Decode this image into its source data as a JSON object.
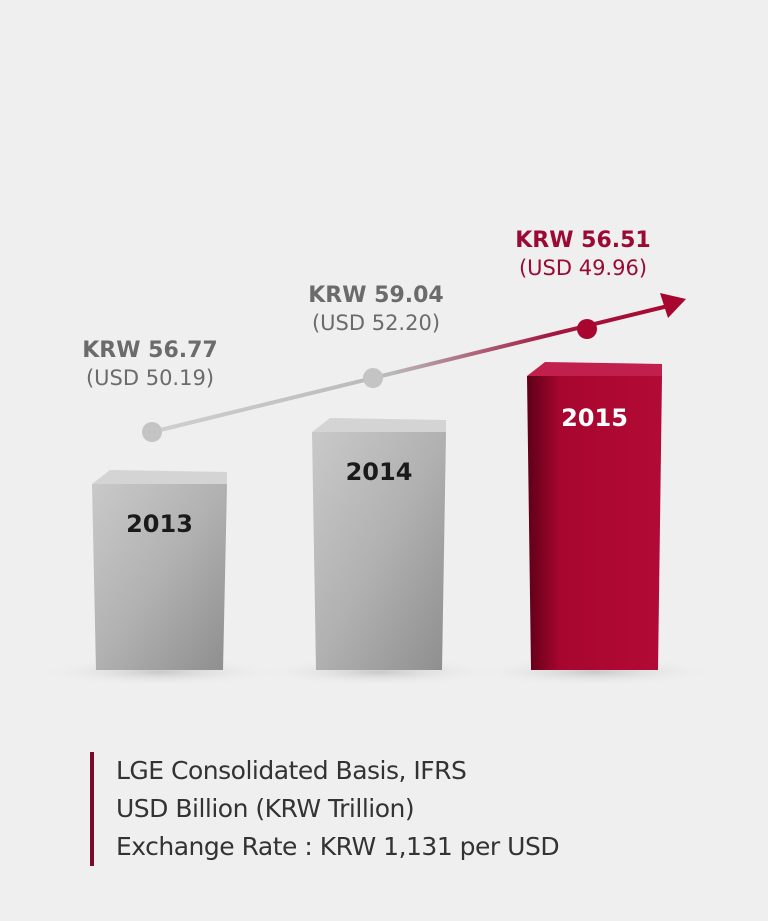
{
  "chart_data": {
    "type": "bar",
    "categories": [
      "2013",
      "2014",
      "2015"
    ],
    "series": [
      {
        "values": [
          56.77,
          59.04,
          56.51
        ],
        "labels": [
          "KRW 56.77",
          "KRW 59.04",
          "KRW 56.51"
        ]
      },
      {
        "values": [
          50.19,
          52.2,
          49.96
        ],
        "labels": [
          "(USD 50.19)",
          "(USD 52.20)",
          "(USD 49.96)"
        ]
      }
    ],
    "trend_arrow": true,
    "colors": {
      "gray_bar": "#a8a8a8",
      "highlight_bar": "#a8062f",
      "gray_text": "#6b6b6b",
      "highlight_text": "#9a0a34"
    },
    "notes": [
      "LGE Consolidated Basis, IFRS",
      "USD Billion (KRW Trillion)",
      "Exchange Rate : KRW 1,131 per USD"
    ]
  }
}
